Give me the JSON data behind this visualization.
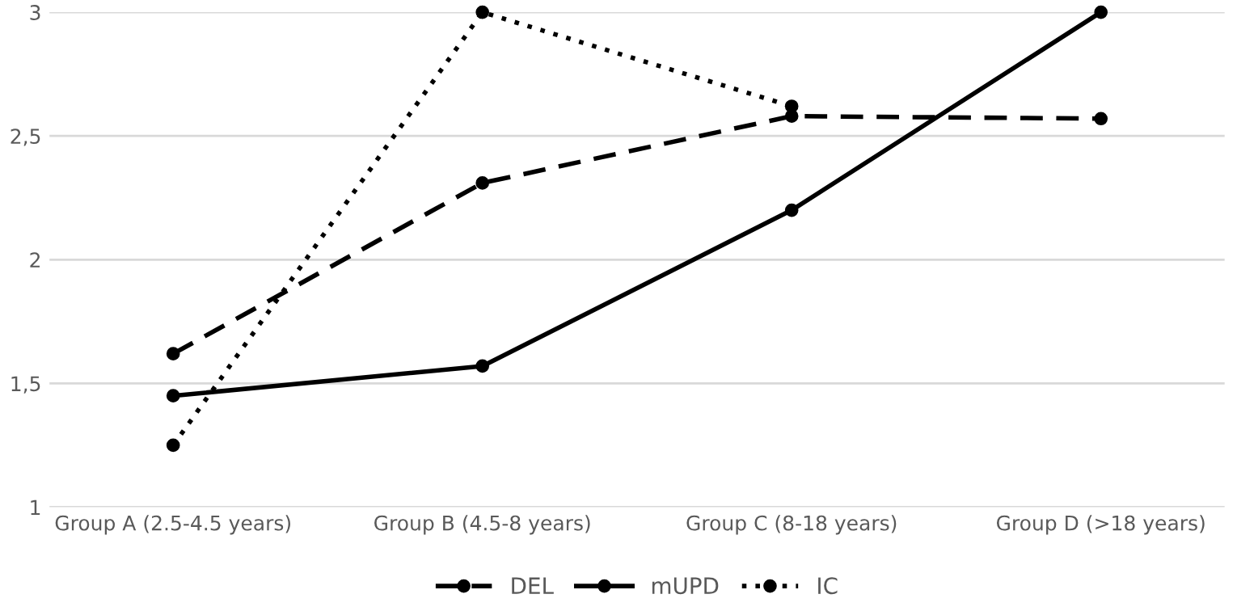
{
  "chart_data": {
    "type": "line",
    "categories": [
      "Group A (2.5-4.5 years)",
      "Group B (4.5-8 years)",
      "Group C (8-18 years)",
      "Group D (>18 years)"
    ],
    "series": [
      {
        "name": "DEL",
        "color": "#000000",
        "line_style": "dashed",
        "values": [
          1.62,
          2.31,
          2.58,
          2.57
        ]
      },
      {
        "name": "mUPD",
        "color": "#000000",
        "line_style": "solid",
        "values": [
          1.45,
          1.57,
          2.2,
          3.0
        ]
      },
      {
        "name": "IC",
        "color": "#000000",
        "line_style": "dotted",
        "values": [
          1.25,
          3.0,
          2.62,
          null
        ]
      }
    ],
    "ylim": [
      1,
      3
    ],
    "yticks": [
      1,
      {
        "value": 1.5,
        "label": "1,5"
      },
      2,
      {
        "value": 2.5,
        "label": "2,5"
      },
      3
    ],
    "grid": "y",
    "legend": "bottom",
    "marker": "circle"
  }
}
